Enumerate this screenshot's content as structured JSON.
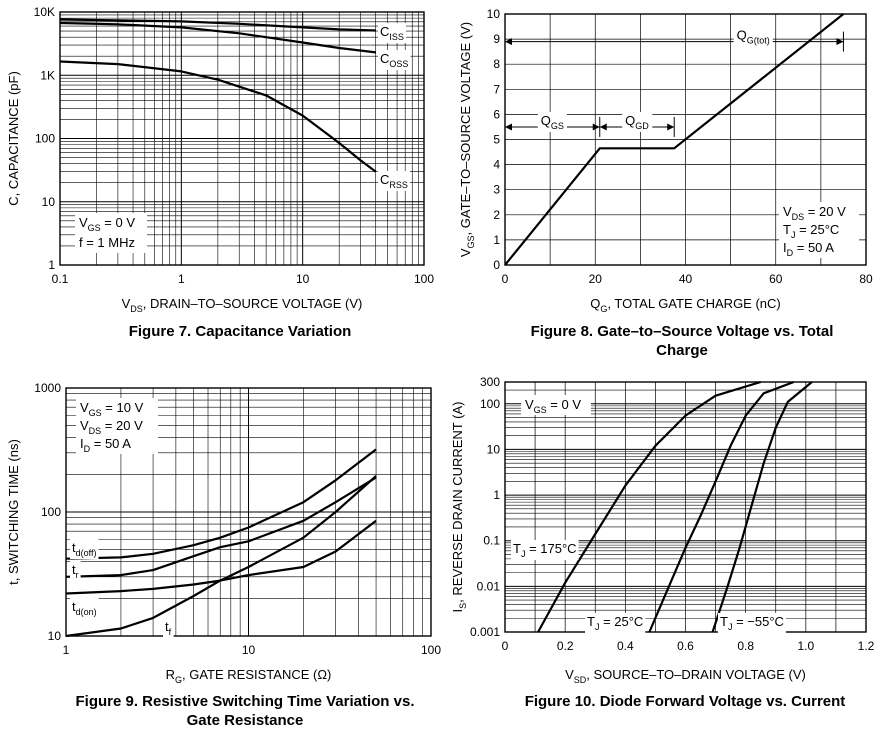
{
  "chart_data": [
    {
      "id": "fig7",
      "type": "line",
      "title": "Figure 7. Capacitance Variation",
      "xlabel": {
        "main": "V",
        "sub": "DS",
        "rest": ", DRAIN–TO–SOURCE VOLTAGE (V)"
      },
      "ylabel": "C, CAPACITANCE (pF)",
      "xscale": "log",
      "yscale": "log",
      "xlim": [
        0.1,
        100
      ],
      "ylim": [
        1,
        10000
      ],
      "x_ticks": [
        {
          "v": 0.1,
          "t": "0.1"
        },
        {
          "v": 1,
          "t": "1"
        },
        {
          "v": 10,
          "t": "10"
        },
        {
          "v": 100,
          "t": "100"
        }
      ],
      "y_ticks": [
        {
          "v": 1,
          "t": "1"
        },
        {
          "v": 10,
          "t": "10"
        },
        {
          "v": 100,
          "t": "100"
        },
        {
          "v": 1000,
          "t": "1K"
        },
        {
          "v": 10000,
          "t": "10K"
        }
      ],
      "series": [
        {
          "name": "CISS",
          "label": {
            "main": "C",
            "sub": "ISS"
          },
          "x": [
            0.1,
            0.3,
            1,
            3,
            10,
            20,
            40
          ],
          "y": [
            7600,
            7400,
            7100,
            6500,
            5700,
            5300,
            5100
          ]
        },
        {
          "name": "COSS",
          "label": {
            "main": "C",
            "sub": "OSS"
          },
          "x": [
            0.1,
            0.3,
            1,
            3,
            10,
            20,
            40
          ],
          "y": [
            6700,
            6400,
            5700,
            4600,
            3300,
            2700,
            2300
          ]
        },
        {
          "name": "CRSS",
          "label": {
            "main": "C",
            "sub": "RSS"
          },
          "x": [
            0.1,
            0.3,
            1,
            2,
            5,
            10,
            20,
            30,
            40
          ],
          "y": [
            1650,
            1500,
            1150,
            850,
            480,
            230,
            85,
            45,
            30
          ]
        }
      ],
      "legend": {
        "position": "bottom-left",
        "lines": [
          {
            "main": "V",
            "sub": "GS",
            "rest": " = 0 V"
          },
          {
            "main": "f = 1 MHz",
            "sub": "",
            "rest": ""
          }
        ]
      }
    },
    {
      "id": "fig8",
      "type": "line",
      "title": "Figure 8. Gate–to–Source Voltage vs. Total Charge",
      "xlabel": {
        "main": "Q",
        "sub": "G",
        "rest": ", TOTAL GATE CHARGE (nC)"
      },
      "ylabel": {
        "main": "V",
        "sub": "GS",
        "rest": ", GATE–TO–SOURCE VOLTAGE (V)"
      },
      "xscale": "linear",
      "yscale": "linear",
      "xlim": [
        0,
        80
      ],
      "ylim": [
        0,
        10
      ],
      "x_ticks": [
        {
          "v": 0,
          "t": "0"
        },
        {
          "v": 20,
          "t": "20"
        },
        {
          "v": 40,
          "t": "40"
        },
        {
          "v": 60,
          "t": "60"
        },
        {
          "v": 80,
          "t": "80"
        }
      ],
      "y_ticks": [
        {
          "v": 0,
          "t": "0"
        },
        {
          "v": 1,
          "t": "1"
        },
        {
          "v": 2,
          "t": "2"
        },
        {
          "v": 3,
          "t": "3"
        },
        {
          "v": 4,
          "t": "4"
        },
        {
          "v": 5,
          "t": "5"
        },
        {
          "v": 6,
          "t": "6"
        },
        {
          "v": 7,
          "t": "7"
        },
        {
          "v": 8,
          "t": "8"
        },
        {
          "v": 9,
          "t": "9"
        },
        {
          "v": 10,
          "t": "10"
        }
      ],
      "series": [
        {
          "name": "VGS",
          "x": [
            0,
            21,
            37.5,
            75
          ],
          "y": [
            0,
            4.65,
            4.65,
            10
          ]
        }
      ],
      "annotations": [
        {
          "text": {
            "main": "Q",
            "sub": "GS"
          },
          "from": 0,
          "to": 21,
          "y": 5.5
        },
        {
          "text": {
            "main": "Q",
            "sub": "GD"
          },
          "from": 21,
          "to": 37.5,
          "y": 5.5
        },
        {
          "text": {
            "main": "Q",
            "sub": "G(tot)"
          },
          "from": 0,
          "to": 75,
          "y": 8.9
        }
      ],
      "legend": {
        "position": "bottom-right",
        "lines": [
          {
            "main": "V",
            "sub": "DS",
            "rest": " = 20 V"
          },
          {
            "main": "T",
            "sub": "J",
            "rest": " = 25°C"
          },
          {
            "main": "I",
            "sub": "D",
            "rest": " = 50 A"
          }
        ]
      }
    },
    {
      "id": "fig9",
      "type": "line",
      "title": "Figure 9. Resistive Switching Time Variation vs. Gate Resistance",
      "xlabel": {
        "main": "R",
        "sub": "G",
        "rest": ", GATE RESISTANCE (Ω)"
      },
      "ylabel": "t, SWITCHING TIME (ns)",
      "xscale": "log",
      "yscale": "log",
      "xlim": [
        1,
        100
      ],
      "ylim": [
        10,
        1000
      ],
      "x_ticks": [
        {
          "v": 1,
          "t": "1"
        },
        {
          "v": 10,
          "t": "10"
        },
        {
          "v": 100,
          "t": "100"
        }
      ],
      "y_ticks": [
        {
          "v": 10,
          "t": "10"
        },
        {
          "v": 100,
          "t": "100"
        },
        {
          "v": 1000,
          "t": "1000"
        }
      ],
      "series": [
        {
          "name": "td(off)",
          "label": {
            "main": "t",
            "sub": "d(off)"
          },
          "x": [
            1,
            2,
            3,
            5,
            7,
            10,
            20,
            30,
            50
          ],
          "y": [
            42,
            43,
            46,
            54,
            62,
            75,
            120,
            180,
            320
          ]
        },
        {
          "name": "tr",
          "label": {
            "main": "t",
            "sub": "r"
          },
          "x": [
            1,
            2,
            3,
            5,
            7,
            10,
            20,
            30,
            50
          ],
          "y": [
            30,
            31,
            34,
            44,
            52,
            58,
            85,
            120,
            190
          ]
        },
        {
          "name": "td(on)",
          "label": {
            "main": "t",
            "sub": "d(on)"
          },
          "x": [
            1,
            2,
            3,
            5,
            7,
            10,
            20,
            30,
            50
          ],
          "y": [
            22,
            23,
            24,
            26,
            28,
            31,
            36,
            48,
            85
          ]
        },
        {
          "name": "tf",
          "label": {
            "main": "t",
            "sub": "f"
          },
          "x": [
            1,
            2,
            3,
            5,
            7,
            10,
            20,
            30,
            50
          ],
          "y": [
            10,
            11.5,
            14,
            21,
            28,
            36,
            62,
            100,
            195
          ]
        }
      ],
      "legend": {
        "position": "top-left",
        "lines": [
          {
            "main": "V",
            "sub": "GS",
            "rest": " = 10 V"
          },
          {
            "main": "V",
            "sub": "DS",
            "rest": " = 20 V"
          },
          {
            "main": "I",
            "sub": "D",
            "rest": " = 50 A"
          }
        ]
      }
    },
    {
      "id": "fig10",
      "type": "line",
      "title": "Figure 10. Diode Forward Voltage vs. Current",
      "xlabel": {
        "main": "V",
        "sub": "SD",
        "rest": ", SOURCE–TO–DRAIN VOLTAGE (V)"
      },
      "ylabel": {
        "main": "I",
        "sub": "S",
        "rest": ", REVERSE DRAIN CURRENT (A)"
      },
      "xscale": "linear",
      "yscale": "log",
      "xlim": [
        0,
        1.2
      ],
      "ylim": [
        0.001,
        300
      ],
      "x_ticks": [
        {
          "v": 0,
          "t": "0"
        },
        {
          "v": 0.2,
          "t": "0.2"
        },
        {
          "v": 0.4,
          "t": "0.4"
        },
        {
          "v": 0.6,
          "t": "0.6"
        },
        {
          "v": 0.8,
          "t": "0.8"
        },
        {
          "v": 1.0,
          "t": "1.0"
        },
        {
          "v": 1.2,
          "t": "1.2"
        }
      ],
      "y_ticks": [
        {
          "v": 0.001,
          "t": "0.001"
        },
        {
          "v": 0.01,
          "t": "0.01"
        },
        {
          "v": 0.1,
          "t": "0.1"
        },
        {
          "v": 1,
          "t": "1"
        },
        {
          "v": 10,
          "t": "10"
        },
        {
          "v": 100,
          "t": "100"
        },
        {
          "v": 300,
          "t": "300"
        }
      ],
      "series": [
        {
          "name": "TJ = 175°C",
          "label": {
            "main": "T",
            "sub": "J",
            "rest": " = 175°C"
          },
          "x": [
            0.11,
            0.2,
            0.3,
            0.4,
            0.5,
            0.6,
            0.7,
            0.85
          ],
          "y": [
            0.001,
            0.012,
            0.14,
            1.6,
            12,
            55,
            150,
            300
          ]
        },
        {
          "name": "TJ = 25°C",
          "label": {
            "main": "T",
            "sub": "J",
            "rest": " = 25°C"
          },
          "x": [
            0.48,
            0.55,
            0.6,
            0.65,
            0.7,
            0.75,
            0.8,
            0.86,
            0.96
          ],
          "y": [
            0.001,
            0.012,
            0.07,
            0.35,
            2,
            12,
            55,
            170,
            300
          ]
        },
        {
          "name": "TJ = −55°C",
          "label": {
            "main": "T",
            "sub": "J",
            "rest": " = −55°C"
          },
          "x": [
            0.69,
            0.74,
            0.78,
            0.82,
            0.86,
            0.9,
            0.94,
            1.02
          ],
          "y": [
            0.001,
            0.01,
            0.07,
            0.6,
            5,
            30,
            110,
            300
          ]
        }
      ],
      "legend": {
        "position": "top-left",
        "lines": [
          {
            "main": "V",
            "sub": "GS",
            "rest": " = 0 V"
          }
        ]
      }
    }
  ]
}
